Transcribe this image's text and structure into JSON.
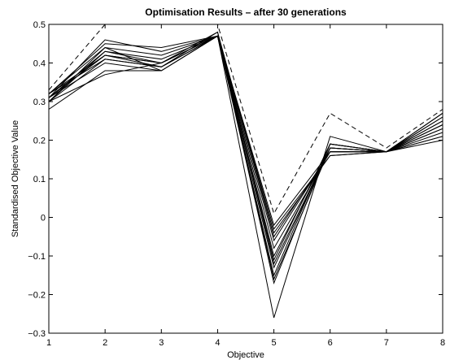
{
  "chart_data": {
    "type": "line",
    "title": "Optimisation Results – after 30 generations",
    "xlabel": "Objective",
    "ylabel": "Standardised Objective Value",
    "x": [
      1,
      2,
      3,
      4,
      5,
      6,
      7,
      8
    ],
    "xlim": [
      1,
      8
    ],
    "ylim": [
      -0.3,
      0.5
    ],
    "yticks": [
      -0.3,
      -0.2,
      -0.1,
      0,
      0.1,
      0.2,
      0.3,
      0.4,
      0.5
    ],
    "xticks": [
      1,
      2,
      3,
      4,
      5,
      6,
      7,
      8
    ],
    "grid": false,
    "legend": "none",
    "line_color": "#000000",
    "series": [
      {
        "style": "dashed",
        "values": [
          0.33,
          0.5,
          0.5,
          0.5,
          0.01,
          0.27,
          0.18,
          0.28
        ]
      },
      {
        "style": "solid",
        "values": [
          0.31,
          0.46,
          0.43,
          0.47,
          -0.26,
          0.21,
          0.17,
          0.27
        ]
      },
      {
        "style": "solid",
        "values": [
          0.32,
          0.45,
          0.44,
          0.47,
          -0.17,
          0.19,
          0.17,
          0.26
        ]
      },
      {
        "style": "solid",
        "values": [
          0.3,
          0.44,
          0.42,
          0.47,
          -0.15,
          0.19,
          0.17,
          0.25
        ]
      },
      {
        "style": "solid",
        "values": [
          0.31,
          0.43,
          0.41,
          0.47,
          -0.13,
          0.18,
          0.17,
          0.25
        ]
      },
      {
        "style": "solid",
        "values": [
          0.3,
          0.43,
          0.4,
          0.48,
          -0.12,
          0.18,
          0.17,
          0.24
        ]
      },
      {
        "style": "solid",
        "values": [
          0.32,
          0.42,
          0.4,
          0.47,
          -0.1,
          0.18,
          0.17,
          0.24
        ]
      },
      {
        "style": "solid",
        "values": [
          0.31,
          0.42,
          0.39,
          0.47,
          -0.08,
          0.17,
          0.17,
          0.23
        ]
      },
      {
        "style": "solid",
        "values": [
          0.3,
          0.41,
          0.39,
          0.47,
          -0.06,
          0.17,
          0.17,
          0.23
        ]
      },
      {
        "style": "solid",
        "values": [
          0.32,
          0.41,
          0.39,
          0.48,
          -0.05,
          0.17,
          0.17,
          0.22
        ]
      },
      {
        "style": "solid",
        "values": [
          0.31,
          0.4,
          0.38,
          0.47,
          -0.04,
          0.16,
          0.17,
          0.21
        ]
      },
      {
        "style": "solid",
        "values": [
          0.28,
          0.38,
          0.38,
          0.47,
          -0.03,
          0.16,
          0.17,
          0.2
        ]
      },
      {
        "style": "solid",
        "values": [
          0.3,
          0.37,
          0.4,
          0.47,
          -0.02,
          0.17,
          0.17,
          0.21
        ]
      },
      {
        "style": "solid",
        "values": [
          0.32,
          0.44,
          0.38,
          0.47,
          -0.11,
          0.19,
          0.17,
          0.27
        ]
      },
      {
        "style": "solid",
        "values": [
          0.31,
          0.42,
          0.4,
          0.47,
          -0.16,
          0.18,
          0.17,
          0.26
        ]
      }
    ]
  }
}
